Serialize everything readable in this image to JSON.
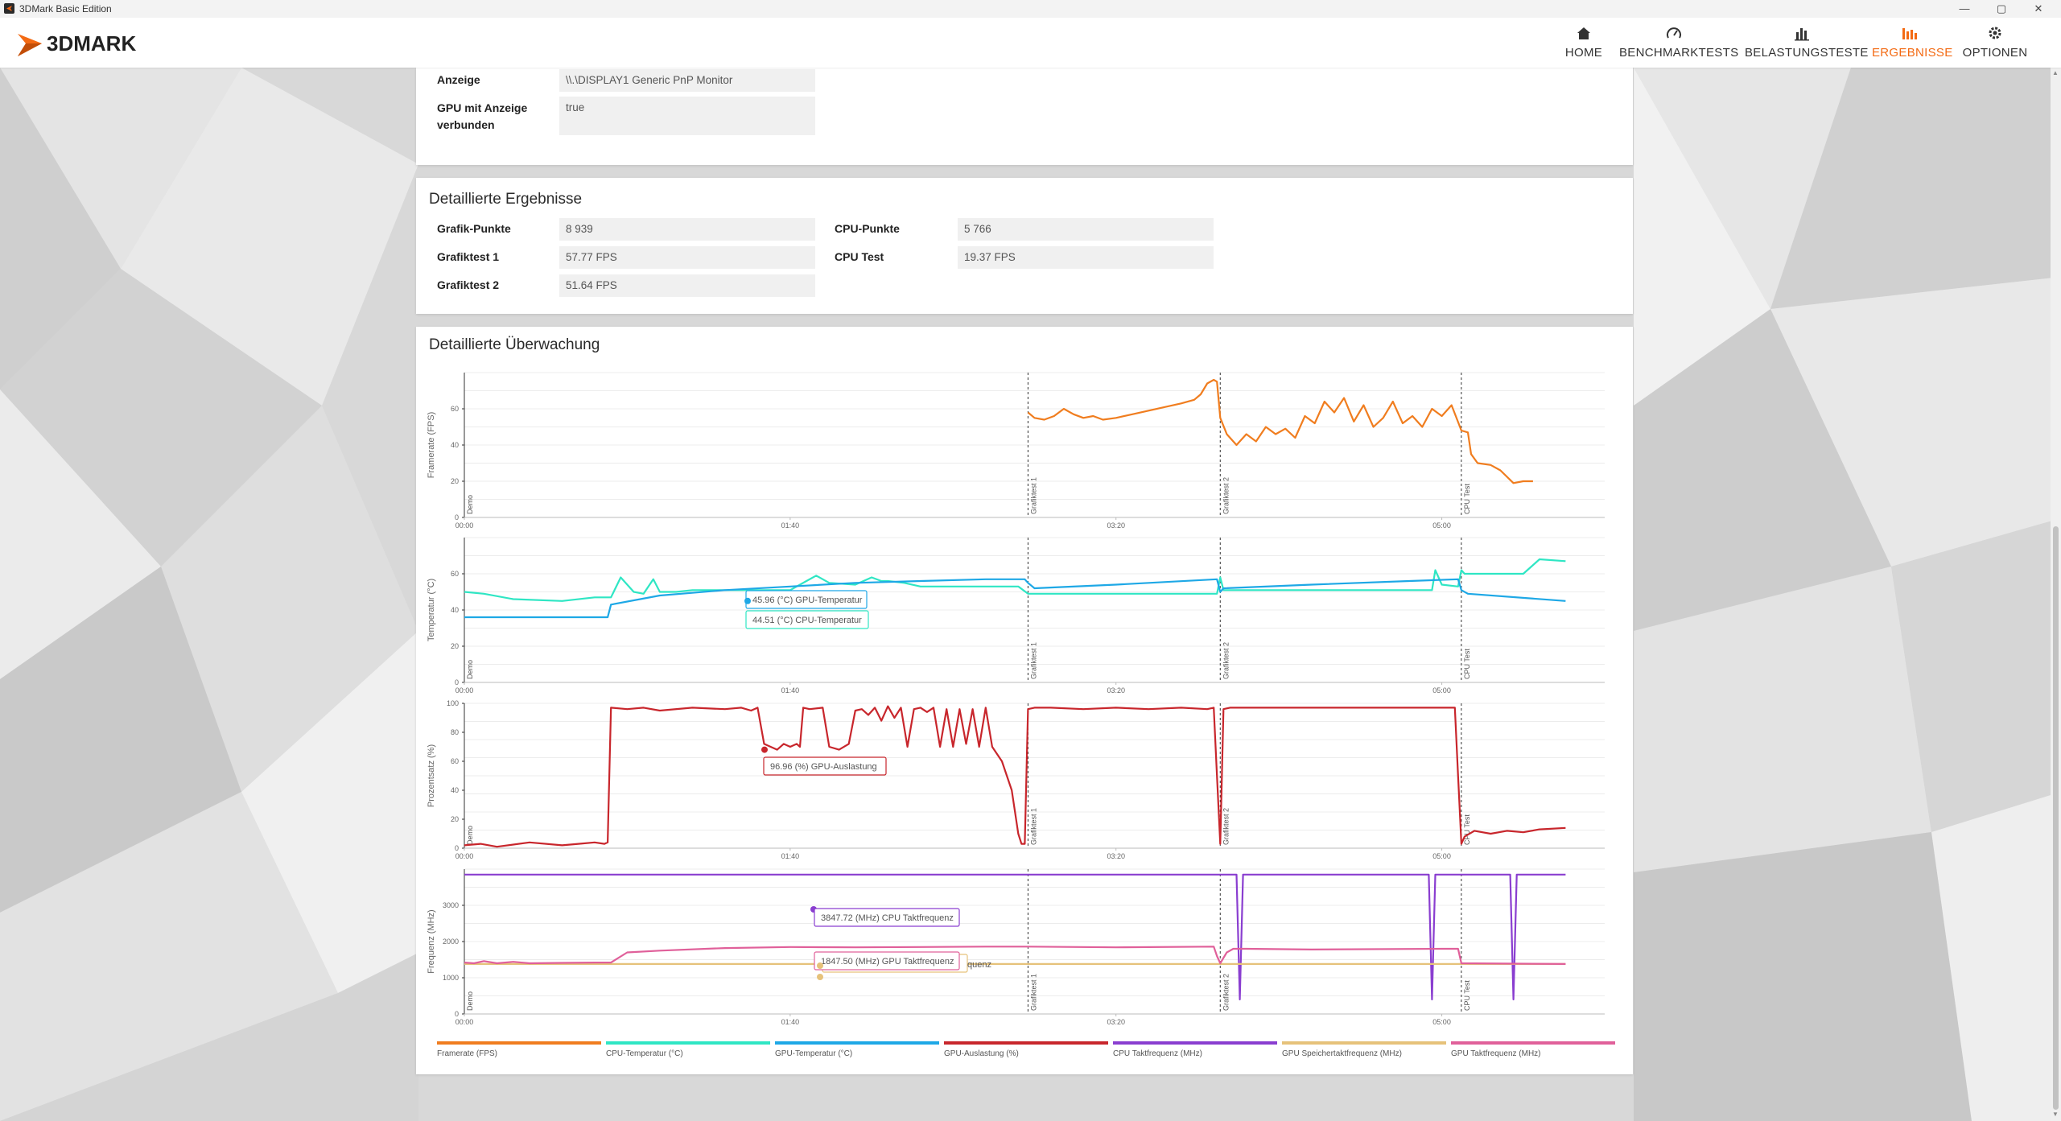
{
  "window": {
    "title": "3DMark Basic Edition",
    "controls": [
      "—",
      "▢",
      "✕"
    ]
  },
  "brand": {
    "name": "3DMARK"
  },
  "nav": [
    {
      "label": "HOME",
      "icon": "home-icon",
      "active": false
    },
    {
      "label": "BENCHMARKTESTS",
      "icon": "gauge-icon",
      "active": false
    },
    {
      "label": "BELASTUNGSTESTE",
      "icon": "bars-chart-icon",
      "active": false
    },
    {
      "label": "ERGEBNISSE",
      "icon": "results-chart-icon",
      "active": true
    },
    {
      "label": "OPTIONEN",
      "icon": "gear-icon",
      "active": false
    }
  ],
  "system_info": {
    "rows": [
      {
        "label": "Anzeige",
        "value": "\\\\.\\DISPLAY1 Generic PnP Monitor"
      },
      {
        "label": "GPU mit Anzeige verbunden",
        "value": "true"
      }
    ]
  },
  "detailed_results": {
    "title": "Detaillierte Ergebnisse",
    "left": [
      {
        "label": "Grafik-Punkte",
        "value": "8 939"
      },
      {
        "label": "Grafiktest 1",
        "value": "57.77 FPS"
      },
      {
        "label": "Grafiktest 2",
        "value": "51.64 FPS"
      }
    ],
    "right": [
      {
        "label": "CPU-Punkte",
        "value": "5 766"
      },
      {
        "label": "CPU Test",
        "value": "19.37 FPS"
      }
    ]
  },
  "monitoring": {
    "title": "Detaillierte Überwachung",
    "x_ticks": [
      "00:00",
      "01:40",
      "03:20",
      "05:00"
    ],
    "x_tick_seconds": [
      0,
      100,
      200,
      300
    ],
    "x_max_seconds": 350,
    "markers": [
      {
        "label": "Demo",
        "t": 0
      },
      {
        "label": "Grafiktest 1",
        "t": 173
      },
      {
        "label": "Grafiktest 2",
        "t": 232
      },
      {
        "label": "CPU Test",
        "t": 306
      }
    ],
    "legend": [
      {
        "label": "Framerate (FPS)",
        "color": "#f07d1f"
      },
      {
        "label": "CPU-Temperatur (°C)",
        "color": "#2fe6c4"
      },
      {
        "label": "GPU-Temperatur (°C)",
        "color": "#1ea8e6"
      },
      {
        "label": "GPU-Auslastung (%)",
        "color": "#c8262c"
      },
      {
        "label": "CPU Taktfrequenz (MHz)",
        "color": "#8a3ed0"
      },
      {
        "label": "GPU Speichertaktfrequenz (MHz)",
        "color": "#e6c27a"
      },
      {
        "label": "GPU Taktfrequenz (MHz)",
        "color": "#e0609a"
      }
    ],
    "tooltips": {
      "gpu_temp": "45.96 (°C) GPU-Temperatur",
      "cpu_temp": "44.51 (°C) CPU-Temperatur",
      "gpu_load": "96.96 (%) GPU-Auslastung",
      "cpu_clock": "3847.72 (MHz) CPU Taktfrequenz",
      "gpu_clock": "1847.50 (MHz) GPU Taktfrequenz",
      "mem_clock_partial": "quenz"
    }
  },
  "chart_data": [
    {
      "type": "line",
      "ylabel": "Framerate (FPS)",
      "ylim": [
        0,
        80
      ],
      "yticks": [
        0,
        20,
        40,
        60
      ],
      "grid": true,
      "series": [
        {
          "name": "Framerate (FPS)",
          "color": "#f07d1f",
          "x": [
            173,
            175,
            178,
            181,
            184,
            187,
            190,
            193,
            196,
            200,
            205,
            210,
            215,
            220,
            224,
            226,
            228,
            230,
            231,
            232,
            234,
            237,
            240,
            243,
            246,
            249,
            252,
            255,
            258,
            261,
            264,
            267,
            270,
            273,
            276,
            279,
            282,
            285,
            288,
            291,
            294,
            297,
            300,
            303,
            306,
            308,
            309,
            311,
            315,
            318,
            322,
            325,
            328
          ],
          "values": [
            58,
            55,
            54,
            56,
            60,
            57,
            55,
            56,
            54,
            55,
            57,
            59,
            61,
            63,
            65,
            68,
            74,
            76,
            75,
            55,
            46,
            40,
            46,
            42,
            50,
            46,
            49,
            44,
            56,
            52,
            64,
            58,
            66,
            53,
            62,
            50,
            55,
            64,
            52,
            56,
            50,
            60,
            56,
            62,
            48,
            47,
            35,
            30,
            29,
            26,
            19,
            20,
            20
          ]
        }
      ]
    },
    {
      "type": "line",
      "ylabel": "Temperatur (°C)",
      "ylim": [
        0,
        80
      ],
      "yticks": [
        0,
        20,
        40,
        60
      ],
      "grid": true,
      "series": [
        {
          "name": "CPU-Temperatur (°C)",
          "color": "#2fe6c4",
          "x": [
            0,
            6,
            15,
            30,
            40,
            45,
            48,
            52,
            55,
            58,
            60,
            65,
            70,
            80,
            90,
            100,
            105,
            108,
            112,
            120,
            125,
            128,
            130,
            135,
            140,
            150,
            160,
            165,
            170,
            173,
            175,
            190,
            210,
            231,
            232,
            233,
            250,
            270,
            290,
            297,
            298,
            300,
            305,
            306,
            307,
            325,
            330,
            338
          ],
          "values": [
            50,
            49,
            46,
            45,
            47,
            47,
            58,
            50,
            49,
            57,
            50,
            50,
            51,
            51,
            51,
            51,
            56,
            59,
            55,
            54,
            58,
            56,
            56,
            55,
            53,
            53,
            53,
            53,
            53,
            49,
            49,
            49,
            49,
            49,
            58,
            51,
            51,
            51,
            51,
            51,
            62,
            54,
            53,
            62,
            60,
            60,
            68,
            67
          ]
        },
        {
          "name": "GPU-Temperatur (°C)",
          "color": "#1ea8e6",
          "x": [
            0,
            30,
            44,
            45,
            60,
            80,
            100,
            120,
            140,
            160,
            172,
            173,
            175,
            200,
            231,
            232,
            233,
            260,
            290,
            305,
            306,
            308,
            338
          ],
          "values": [
            36,
            36,
            36,
            43,
            48,
            51,
            53,
            55,
            56,
            57,
            57,
            55,
            52,
            54,
            57,
            50,
            52,
            54,
            56,
            57,
            51,
            49,
            45
          ]
        }
      ]
    },
    {
      "type": "line",
      "ylabel": "Prozentsatz (%)",
      "ylim": [
        0,
        100
      ],
      "yticks": [
        0,
        20,
        40,
        60,
        80,
        100
      ],
      "grid": true,
      "series": [
        {
          "name": "GPU-Auslastung (%)",
          "color": "#c8262c",
          "x": [
            0,
            5,
            10,
            20,
            30,
            35,
            40,
            43,
            44,
            45,
            50,
            55,
            60,
            70,
            80,
            85,
            88,
            90,
            92,
            94,
            96,
            98,
            100,
            102,
            103,
            104,
            106,
            110,
            112,
            115,
            118,
            120,
            122,
            124,
            126,
            128,
            130,
            132,
            134,
            136,
            138,
            140,
            142,
            144,
            146,
            148,
            150,
            152,
            154,
            156,
            158,
            160,
            162,
            165,
            168,
            170,
            171,
            172,
            173,
            175,
            180,
            190,
            200,
            210,
            220,
            228,
            230,
            231,
            232,
            233,
            235,
            240,
            260,
            280,
            300,
            304,
            305,
            306,
            307,
            310,
            315,
            320,
            325,
            330,
            338
          ],
          "values": [
            2,
            3,
            1,
            4,
            2,
            3,
            4,
            3,
            4,
            97,
            96,
            97,
            95,
            97,
            96,
            97,
            95,
            97,
            72,
            70,
            68,
            72,
            70,
            72,
            70,
            97,
            96,
            97,
            70,
            68,
            72,
            95,
            96,
            92,
            97,
            88,
            98,
            90,
            97,
            70,
            96,
            97,
            94,
            97,
            70,
            96,
            70,
            96,
            72,
            96,
            70,
            97,
            70,
            60,
            40,
            10,
            3,
            3,
            96,
            97,
            97,
            96,
            97,
            96,
            97,
            96,
            97,
            50,
            3,
            96,
            97,
            97,
            97,
            97,
            97,
            97,
            50,
            3,
            8,
            12,
            10,
            12,
            11,
            13,
            14
          ]
        }
      ]
    },
    {
      "type": "line",
      "ylabel": "Frequenz (MHz)",
      "ylim": [
        0,
        4000
      ],
      "yticks": [
        0,
        1000,
        2000,
        3000
      ],
      "grid": true,
      "series": [
        {
          "name": "CPU Taktfrequenz (MHz)",
          "color": "#8a3ed0",
          "x": [
            0,
            236,
            237,
            238,
            239,
            240,
            295,
            296,
            297,
            298,
            299,
            320,
            321,
            322,
            323,
            324,
            338
          ],
          "values": [
            3848,
            3848,
            3848,
            400,
            3848,
            3848,
            3848,
            3848,
            400,
            3848,
            3848,
            3848,
            3848,
            400,
            3848,
            3848,
            3848
          ]
        },
        {
          "name": "GPU Speichertaktfrequenz (MHz)",
          "color": "#e6c27a",
          "x": [
            0,
            338
          ],
          "values": [
            1380,
            1380
          ]
        },
        {
          "name": "GPU Taktfrequenz (MHz)",
          "color": "#e0609a",
          "x": [
            0,
            3,
            6,
            10,
            15,
            20,
            30,
            40,
            45,
            50,
            60,
            80,
            100,
            120,
            140,
            160,
            173,
            200,
            230,
            231,
            232,
            234,
            236,
            240,
            260,
            300,
            305,
            306,
            338
          ],
          "values": [
            1420,
            1400,
            1460,
            1400,
            1440,
            1400,
            1410,
            1420,
            1420,
            1700,
            1750,
            1820,
            1850,
            1840,
            1850,
            1860,
            1860,
            1840,
            1860,
            1600,
            1400,
            1700,
            1800,
            1800,
            1780,
            1800,
            1800,
            1400,
            1380
          ]
        }
      ]
    }
  ]
}
